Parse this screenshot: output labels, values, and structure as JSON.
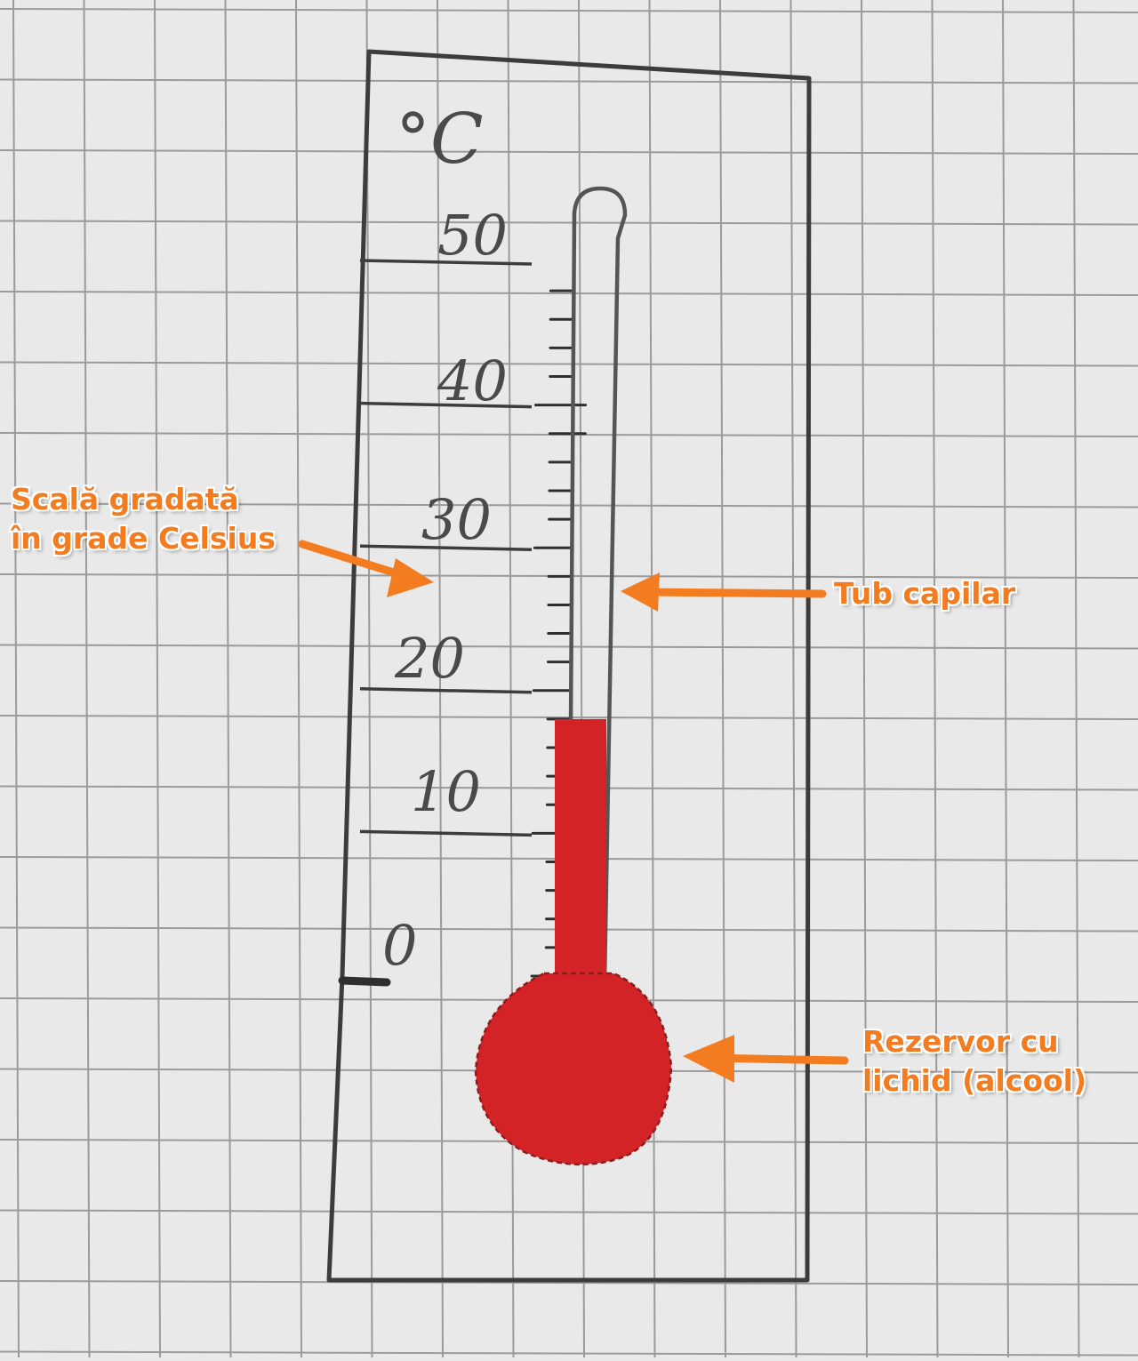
{
  "thermometer": {
    "unit": "°C",
    "scale_labels": [
      "50",
      "40",
      "30",
      "20",
      "10",
      "0"
    ],
    "liquid_level_celsius": 18,
    "liquid_color": "#d42326"
  },
  "callouts": {
    "scale": [
      "Scală gradată",
      "în grade Celsius"
    ],
    "tube": "Tub capilar",
    "reservoir": [
      "Rezervor cu",
      "lichid (alcool)"
    ]
  },
  "colors": {
    "callout_text": "#f47c20",
    "pencil": "#3c3c3c",
    "grid_line": "#9a9a9a",
    "paper": "#e9e9e9"
  }
}
